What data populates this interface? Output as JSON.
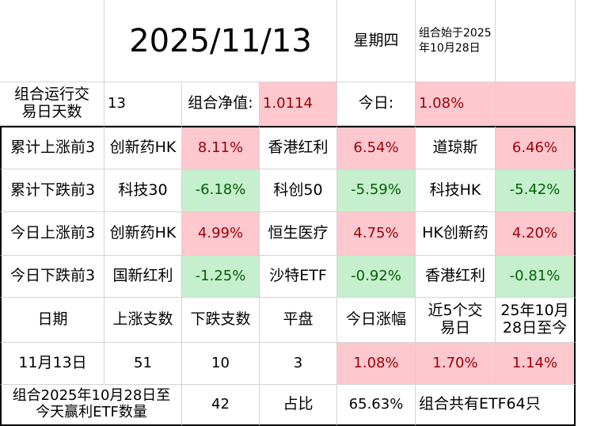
{
  "header": {
    "date": "2025/11/13",
    "weekday": "星期四",
    "start_note": "组合始于2025年10月28日"
  },
  "summary": {
    "days_label": "组合运行交易日天数",
    "days_value": "13",
    "nav_label": "组合净值:",
    "nav_value": "1.0114",
    "today_label": "今日:",
    "today_value": "1.08%"
  },
  "ranking_rows": [
    {
      "label": "累计上涨前3",
      "items": [
        {
          "name": "创新药HK",
          "value": "8.11%",
          "tone": "pink"
        },
        {
          "name": "香港红利",
          "value": "6.54%",
          "tone": "pink"
        },
        {
          "name": "道琼斯",
          "value": "6.46%",
          "tone": "pink"
        }
      ]
    },
    {
      "label": "累计下跌前3",
      "items": [
        {
          "name": "科技30",
          "value": "-6.18%",
          "tone": "green"
        },
        {
          "name": "科创50",
          "value": "-5.59%",
          "tone": "green"
        },
        {
          "name": "科技HK",
          "value": "-5.42%",
          "tone": "green"
        }
      ]
    },
    {
      "label": "今日上涨前3",
      "items": [
        {
          "name": "创新药HK",
          "value": "4.99%",
          "tone": "pink"
        },
        {
          "name": "恒生医疗",
          "value": "4.75%",
          "tone": "pink"
        },
        {
          "name": "HK创新药",
          "value": "4.20%",
          "tone": "pink"
        }
      ]
    },
    {
      "label": "今日下跌前3",
      "items": [
        {
          "name": "国新红利",
          "value": "-1.25%",
          "tone": "green"
        },
        {
          "name": "沙特ETF",
          "value": "-0.92%",
          "tone": "green"
        },
        {
          "name": "香港红利",
          "value": "-0.81%",
          "tone": "green"
        }
      ]
    }
  ],
  "stats": {
    "headers": [
      "日期",
      "上涨支数",
      "下跌支数",
      "平盘",
      "今日涨幅",
      "近5个交易日",
      "25年10月28日至今"
    ],
    "row": [
      "11月13日",
      "51",
      "10",
      "3",
      "1.08%",
      "1.70%",
      "1.14%"
    ]
  },
  "footer": {
    "label": "组合2025年10月28日至今天赢利ETF数量",
    "count": "42",
    "ratio_label": "占比",
    "ratio_value": "65.63%",
    "total_note": "组合共有ETF64只"
  },
  "colors": {
    "up_fill": "#ffc7ce",
    "up_text": "#9c0006",
    "down_fill": "#c6efce",
    "down_text": "#006100"
  }
}
